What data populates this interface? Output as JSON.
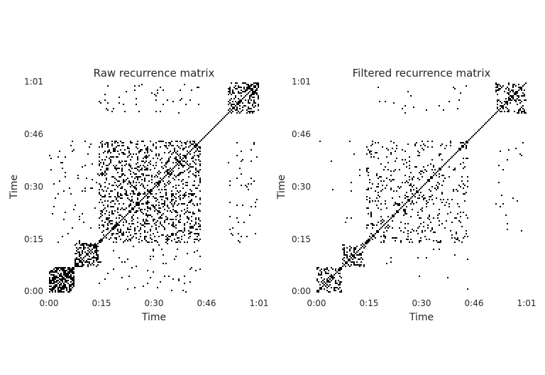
{
  "chart_data": [
    {
      "type": "heatmap",
      "title": "Raw recurrence matrix",
      "xlabel": "Time",
      "ylabel": "Time",
      "xticks": [
        "0:00",
        "0:15",
        "0:30",
        "0:46",
        "1:01"
      ],
      "yticks": [
        "0:00",
        "0:15",
        "0:30",
        "0:46",
        "1:01"
      ],
      "tick_seconds": [
        0,
        15,
        30,
        46,
        61
      ],
      "duration_seconds": 61,
      "colormap": "gray_r",
      "blocks": [
        {
          "start": 0.0,
          "end": 7.5,
          "density": 0.6
        },
        {
          "start": 7.5,
          "end": 14.5,
          "density": 0.4
        },
        {
          "start": 14.5,
          "end": 44.0,
          "density": 0.22
        },
        {
          "start": 52.0,
          "end": 61.0,
          "density": 0.35
        }
      ],
      "off_diagonal_pairs": [
        {
          "a": [
            14.5,
            44.0
          ],
          "b": [
            52.0,
            61.0
          ],
          "density": 0.03
        },
        {
          "a": [
            0.0,
            14.5
          ],
          "b": [
            14.5,
            44.0
          ],
          "density": 0.02
        }
      ]
    },
    {
      "type": "heatmap",
      "title": "Filtered recurrence matrix",
      "xlabel": "Time",
      "ylabel": "Time",
      "xticks": [
        "0:00",
        "0:15",
        "0:30",
        "0:46",
        "1:01"
      ],
      "yticks": [
        "0:00",
        "0:15",
        "0:30",
        "0:46",
        "1:01"
      ],
      "tick_seconds": [
        0,
        15,
        30,
        46,
        61
      ],
      "duration_seconds": 61,
      "colormap": "gray_r",
      "blocks": [
        {
          "start": 0.0,
          "end": 7.5,
          "density": 0.35
        },
        {
          "start": 7.5,
          "end": 14.5,
          "density": 0.25
        },
        {
          "start": 14.5,
          "end": 44.0,
          "density": 0.1
        },
        {
          "start": 52.0,
          "end": 61.0,
          "density": 0.25
        }
      ],
      "off_diagonal_pairs": [
        {
          "a": [
            14.5,
            44.0
          ],
          "b": [
            52.0,
            61.0
          ],
          "density": 0.01
        },
        {
          "a": [
            0.0,
            14.5
          ],
          "b": [
            14.5,
            44.0
          ],
          "density": 0.005
        }
      ]
    }
  ]
}
